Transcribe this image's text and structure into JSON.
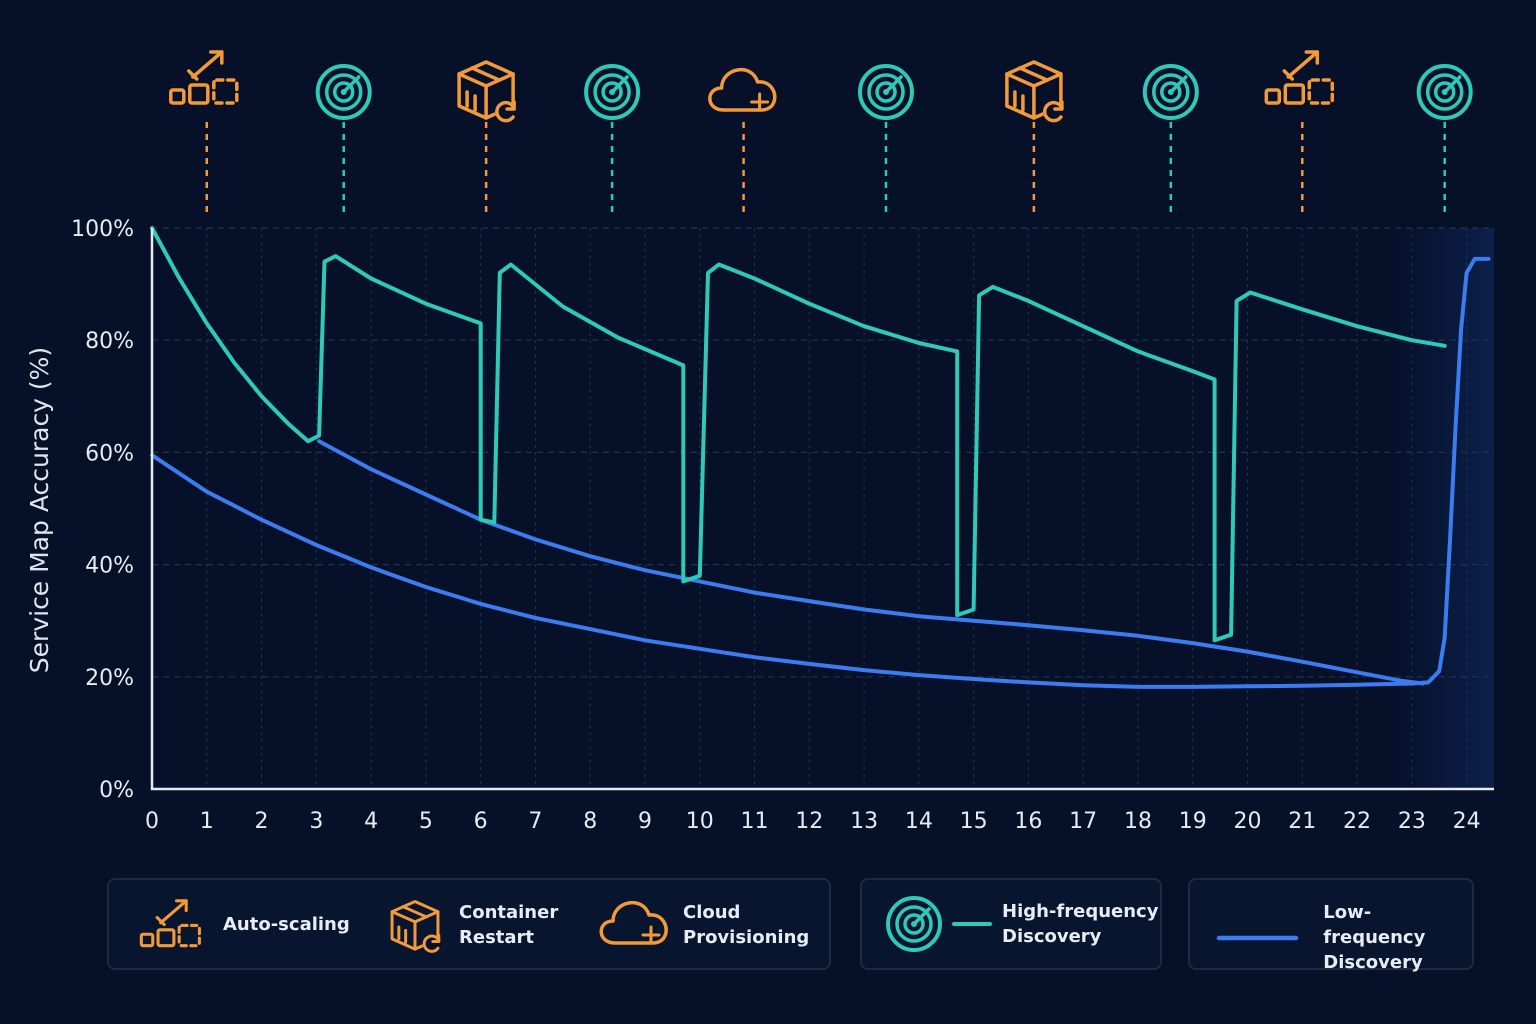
{
  "chart_data": {
    "type": "line",
    "ylabel": "Service Map Accuracy (%)",
    "xlabel": "",
    "xlim": [
      0,
      24.5
    ],
    "ylim": [
      0,
      100
    ],
    "x_ticks": [
      0,
      1,
      2,
      3,
      4,
      5,
      6,
      7,
      8,
      9,
      10,
      11,
      12,
      13,
      14,
      15,
      16,
      17,
      18,
      19,
      20,
      21,
      22,
      23,
      24
    ],
    "y_ticks": [
      0,
      20,
      40,
      60,
      80,
      100
    ],
    "y_tick_labels": [
      "0%",
      "20%",
      "40%",
      "60%",
      "80%",
      "100%"
    ],
    "grid": true,
    "series": [
      {
        "name": "High-frequency Discovery",
        "color": "#2fc9b8",
        "points": [
          [
            0,
            100
          ],
          [
            0.5,
            91
          ],
          [
            1,
            83
          ],
          [
            1.5,
            76
          ],
          [
            2,
            70
          ],
          [
            2.5,
            65
          ],
          [
            2.85,
            62
          ],
          [
            3.05,
            63
          ],
          [
            3.15,
            94
          ],
          [
            3.35,
            95
          ],
          [
            4,
            91
          ],
          [
            5,
            86.5
          ],
          [
            6,
            83
          ],
          [
            6,
            48
          ],
          [
            6.25,
            47.5
          ],
          [
            6.35,
            92
          ],
          [
            6.55,
            93.5
          ],
          [
            7.5,
            86
          ],
          [
            8.5,
            80.5
          ],
          [
            9.7,
            75.5
          ],
          [
            9.7,
            37
          ],
          [
            10,
            38
          ],
          [
            10.15,
            92
          ],
          [
            10.35,
            93.5
          ],
          [
            11,
            91
          ],
          [
            12,
            86.5
          ],
          [
            13,
            82.5
          ],
          [
            14,
            79.5
          ],
          [
            14.7,
            78
          ],
          [
            14.7,
            31
          ],
          [
            15,
            32
          ],
          [
            15.1,
            88
          ],
          [
            15.35,
            89.5
          ],
          [
            16,
            87
          ],
          [
            17,
            82.5
          ],
          [
            18,
            78
          ],
          [
            19,
            74.5
          ],
          [
            19.4,
            73
          ],
          [
            19.4,
            26.5
          ],
          [
            19.7,
            27.5
          ],
          [
            19.8,
            87
          ],
          [
            20.05,
            88.5
          ],
          [
            21,
            85.5
          ],
          [
            22,
            82.5
          ],
          [
            23,
            80
          ],
          [
            23.6,
            79
          ]
        ]
      },
      {
        "name": "Low-frequency Discovery",
        "color": "#3b7cf0",
        "points": [
          [
            0,
            59.5
          ],
          [
            1,
            53
          ],
          [
            2,
            48
          ],
          [
            3,
            43.5
          ],
          [
            4,
            39.5
          ],
          [
            5,
            36
          ],
          [
            6,
            33
          ],
          [
            7,
            30.5
          ],
          [
            8,
            28.5
          ],
          [
            9,
            26.5
          ],
          [
            10,
            25
          ],
          [
            11,
            23.5
          ],
          [
            12,
            22.3
          ],
          [
            13,
            21.2
          ],
          [
            14,
            20.3
          ],
          [
            15,
            19.6
          ],
          [
            16,
            19
          ],
          [
            17,
            18.5
          ],
          [
            18,
            18.2
          ],
          [
            19,
            18.2
          ],
          [
            20,
            18.3
          ],
          [
            21,
            18.4
          ],
          [
            22,
            18.6
          ],
          [
            23,
            18.8
          ],
          [
            23.3,
            19
          ],
          [
            23.5,
            21
          ],
          [
            23.6,
            27
          ],
          [
            23.7,
            45
          ],
          [
            23.8,
            65
          ],
          [
            23.9,
            82
          ],
          [
            24,
            92
          ],
          [
            24.15,
            94.5
          ],
          [
            24.4,
            94.5
          ]
        ]
      },
      {
        "name": "",
        "color": "#3b7cf0",
        "points": [
          [
            3.05,
            62
          ],
          [
            4,
            57
          ],
          [
            5,
            52.5
          ],
          [
            6,
            48
          ],
          [
            7,
            44.5
          ],
          [
            8,
            41.5
          ],
          [
            9,
            39
          ],
          [
            10,
            37
          ],
          [
            11,
            35
          ],
          [
            12,
            33.5
          ],
          [
            13,
            32
          ],
          [
            14,
            30.8
          ],
          [
            15,
            30
          ],
          [
            16,
            29.2
          ],
          [
            17,
            28.3
          ],
          [
            18,
            27.3
          ],
          [
            19,
            26
          ],
          [
            20,
            24.5
          ],
          [
            21,
            22.7
          ],
          [
            22,
            20.8
          ],
          [
            22.8,
            19.3
          ],
          [
            23.2,
            18.8
          ]
        ]
      }
    ],
    "events": [
      {
        "x": 1.0,
        "type": "Auto-scaling"
      },
      {
        "x": 3.5,
        "type": "High-frequency Discovery"
      },
      {
        "x": 6.1,
        "type": "Container Restart"
      },
      {
        "x": 8.4,
        "type": "High-frequency Discovery"
      },
      {
        "x": 10.8,
        "type": "Cloud Provisioning"
      },
      {
        "x": 13.4,
        "type": "High-frequency Discovery"
      },
      {
        "x": 16.1,
        "type": "Container Restart"
      },
      {
        "x": 18.6,
        "type": "High-frequency Discovery"
      },
      {
        "x": 21.0,
        "type": "Auto-scaling"
      },
      {
        "x": 23.6,
        "type": "High-frequency Discovery"
      }
    ]
  },
  "legend": {
    "auto_scaling": "Auto-scaling",
    "container_restart": "Container\nRestart",
    "cloud_provisioning": "Cloud\nProvisioning",
    "high_freq": "High-frequency\nDiscovery",
    "low_freq": "Low-frequency\nDiscovery"
  },
  "colors": {
    "background": "#061129",
    "event_orange": "#f29a3a",
    "discovery_teal": "#2fc9b8",
    "low_blue": "#3b7cf0",
    "grid": "#22324d",
    "axis": "#e6ebf2"
  },
  "icons": {
    "auto_scaling": "auto-scaling-icon",
    "container_restart": "container-restart-icon",
    "cloud_provisioning": "cloud-plus-icon",
    "discovery": "radar-icon"
  }
}
